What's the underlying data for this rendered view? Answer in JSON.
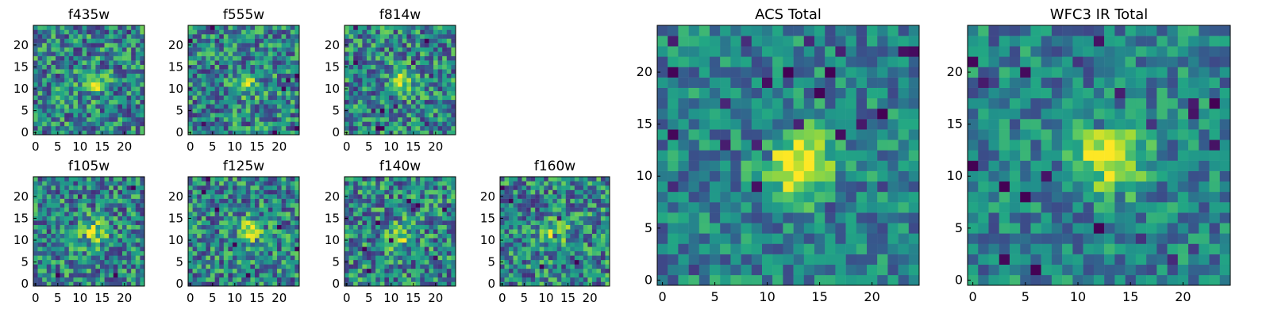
{
  "figure": {
    "colormap": "viridis"
  },
  "chart_data": [
    {
      "type": "heatmap",
      "title": "f435w",
      "grid_size": 25,
      "x_ticks": [
        0,
        5,
        10,
        15,
        20
      ],
      "y_ticks": [
        0,
        5,
        10,
        15,
        20
      ],
      "xlim": [
        0,
        25
      ],
      "ylim": [
        0,
        25
      ],
      "grid": false,
      "note": "pixel intensity map, faint source near (13, 11)",
      "source_center": [
        13,
        11
      ],
      "source_strength": "faint"
    },
    {
      "type": "heatmap",
      "title": "f555w",
      "grid_size": 25,
      "x_ticks": [
        0,
        5,
        10,
        15,
        20
      ],
      "y_ticks": [
        0,
        5,
        10,
        15,
        20
      ],
      "xlim": [
        0,
        25
      ],
      "ylim": [
        0,
        25
      ],
      "grid": false,
      "source_center": [
        13,
        11
      ],
      "source_strength": "faint"
    },
    {
      "type": "heatmap",
      "title": "f814w",
      "grid_size": 25,
      "x_ticks": [
        0,
        5,
        10,
        15,
        20
      ],
      "y_ticks": [
        0,
        5,
        10,
        15,
        20
      ],
      "xlim": [
        0,
        25
      ],
      "ylim": [
        0,
        25
      ],
      "grid": false,
      "source_center": [
        13,
        12
      ],
      "source_strength": "moderate"
    },
    {
      "type": "heatmap",
      "title": "f105w",
      "grid_size": 25,
      "x_ticks": [
        0,
        5,
        10,
        15,
        20
      ],
      "y_ticks": [
        0,
        5,
        10,
        15,
        20
      ],
      "xlim": [
        0,
        25
      ],
      "ylim": [
        0,
        25
      ],
      "grid": false,
      "source_center": [
        13,
        12
      ],
      "source_strength": "moderate"
    },
    {
      "type": "heatmap",
      "title": "f125w",
      "grid_size": 25,
      "x_ticks": [
        0,
        5,
        10,
        15,
        20
      ],
      "y_ticks": [
        0,
        5,
        10,
        15,
        20
      ],
      "xlim": [
        0,
        25
      ],
      "ylim": [
        0,
        25
      ],
      "grid": false,
      "source_center": [
        13,
        12
      ],
      "source_strength": "moderate"
    },
    {
      "type": "heatmap",
      "title": "f140w",
      "grid_size": 25,
      "x_ticks": [
        0,
        5,
        10,
        15,
        20
      ],
      "y_ticks": [
        0,
        5,
        10,
        15,
        20
      ],
      "xlim": [
        0,
        25
      ],
      "ylim": [
        0,
        25
      ],
      "grid": false,
      "source_center": [
        12,
        11
      ],
      "source_strength": "moderate"
    },
    {
      "type": "heatmap",
      "title": "f160w",
      "grid_size": 25,
      "x_ticks": [
        0,
        5,
        10,
        15,
        20
      ],
      "y_ticks": [
        0,
        5,
        10,
        15,
        20
      ],
      "xlim": [
        0,
        25
      ],
      "ylim": [
        0,
        25
      ],
      "grid": false,
      "source_center": [
        12,
        12
      ],
      "source_strength": "moderate"
    },
    {
      "type": "heatmap",
      "title": "ACS Total",
      "grid_size": 25,
      "x_ticks": [
        0,
        5,
        10,
        15,
        20
      ],
      "y_ticks": [
        0,
        5,
        10,
        15,
        20
      ],
      "xlim": [
        0,
        25
      ],
      "ylim": [
        0,
        25
      ],
      "grid": false,
      "source_center": [
        13,
        11
      ],
      "source_strength": "strong"
    },
    {
      "type": "heatmap",
      "title": "WFC3 IR Total",
      "grid_size": 25,
      "x_ticks": [
        0,
        5,
        10,
        15,
        20
      ],
      "y_ticks": [
        0,
        5,
        10,
        15,
        20
      ],
      "xlim": [
        0,
        25
      ],
      "ylim": [
        0,
        25
      ],
      "grid": false,
      "source_center": [
        13,
        12
      ],
      "source_strength": "strong"
    }
  ]
}
